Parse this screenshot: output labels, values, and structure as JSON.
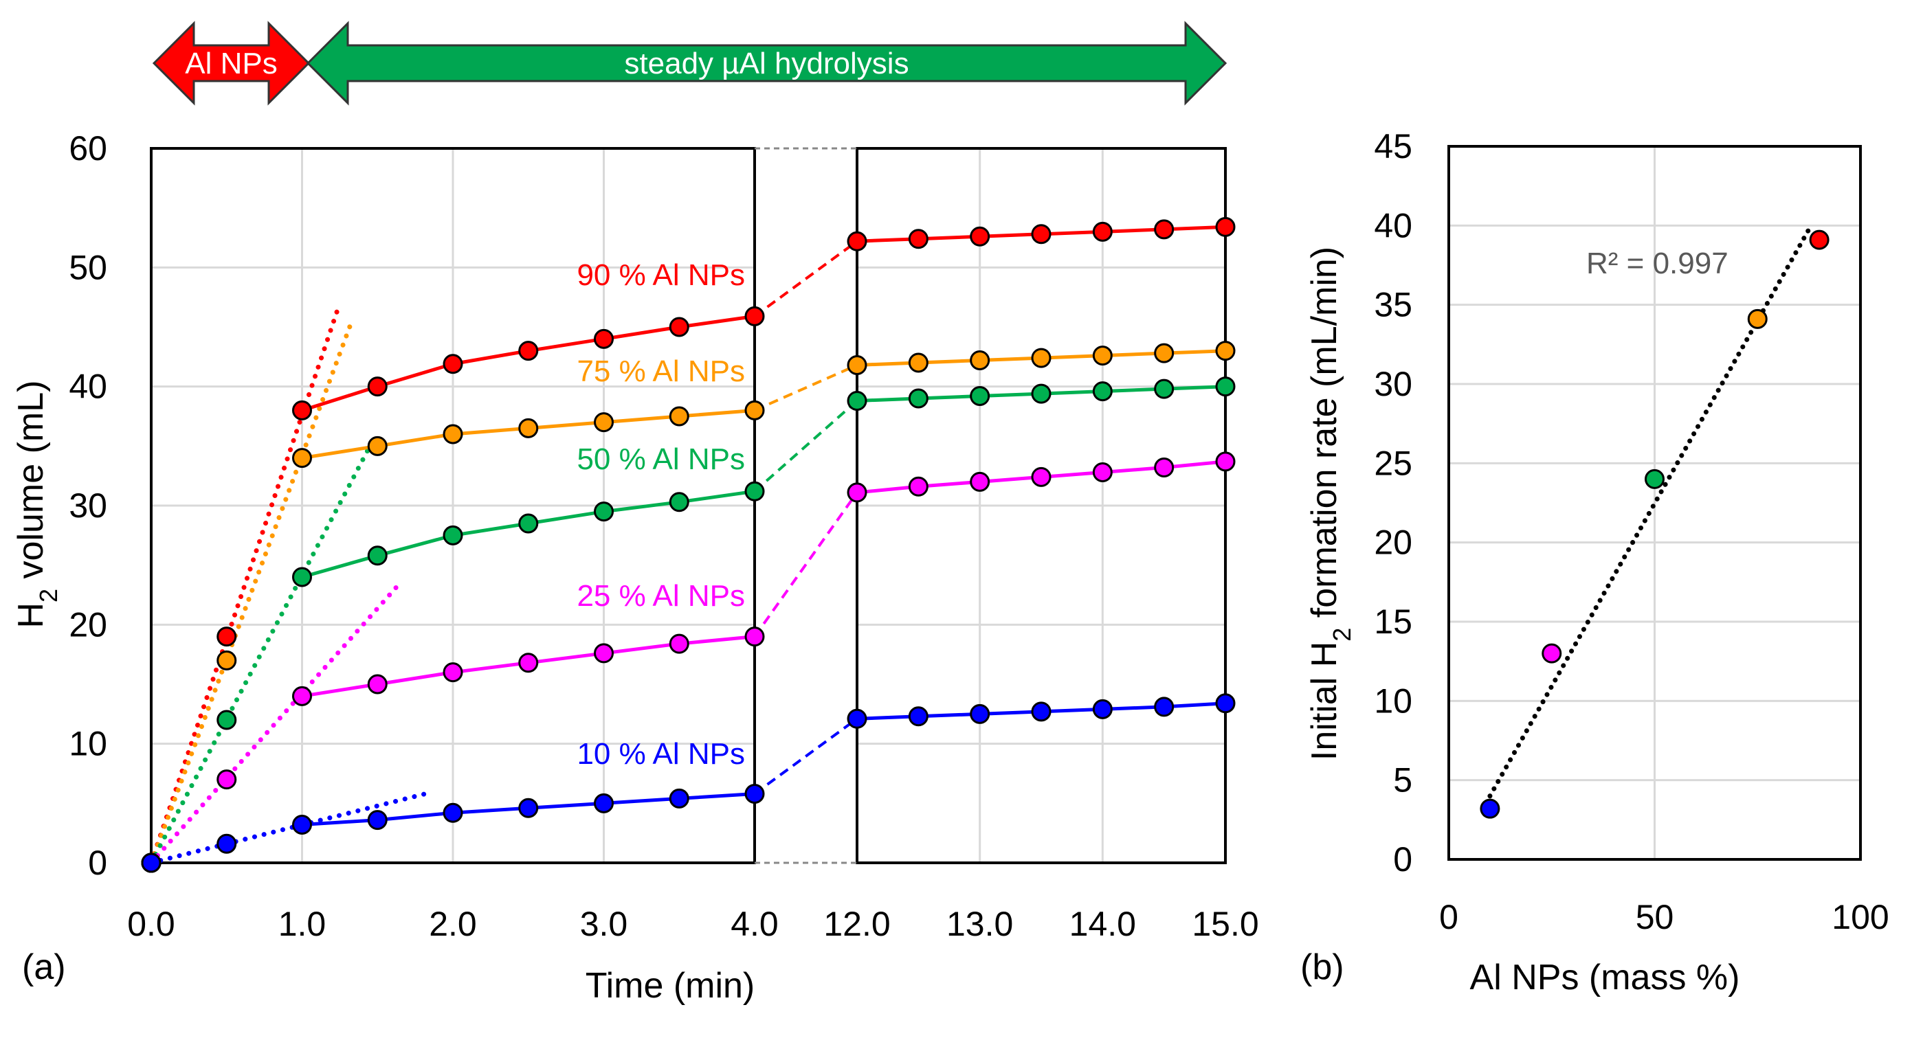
{
  "chart_data": [
    {
      "type": "line",
      "panel": "(a)",
      "xlabel": "Time (min)",
      "ylabel": "H2 volume (mL)",
      "ylabel_main": "H",
      "ylabel_sub": "2",
      "ylabel_rest": " volume (mL)",
      "ylim": [
        0,
        60
      ],
      "yticks": [
        "0",
        "10",
        "20",
        "30",
        "40",
        "50",
        "60"
      ],
      "broken_axis": true,
      "left_segment": {
        "xlim": [
          0,
          4
        ],
        "xticks": [
          "0.0",
          "1.0",
          "2.0",
          "3.0",
          "4.0"
        ]
      },
      "right_segment": {
        "xlim": [
          12,
          15
        ],
        "xticks": [
          "12.0",
          "13.0",
          "14.0",
          "15.0"
        ]
      },
      "phase_arrows": [
        {
          "label": "Al NPs",
          "x_range": [
            0,
            1
          ],
          "color": "#ff0000"
        },
        {
          "label": "steady µAl hydrolysis",
          "x_range": [
            1,
            15
          ],
          "color": "#00a651"
        }
      ],
      "series": [
        {
          "name": "90 % Al NPs",
          "color": "#ff0000",
          "x": [
            0,
            0.5,
            1,
            1.5,
            2,
            2.5,
            3,
            3.5,
            4,
            12,
            12.5,
            13,
            13.5,
            14,
            14.5,
            15
          ],
          "y": [
            0,
            19,
            38,
            40,
            41.9,
            43,
            44,
            45,
            45.9,
            52.2,
            52.4,
            52.6,
            52.8,
            53,
            53.2,
            53.4
          ],
          "initial_slope_line": [
            [
              0,
              0
            ],
            [
              1.25,
              47
            ]
          ]
        },
        {
          "name": "75 % Al NPs",
          "color": "#ff9900",
          "x": [
            0,
            0.5,
            1,
            1.5,
            2,
            2.5,
            3,
            3.5,
            4,
            12,
            12.5,
            13,
            13.5,
            14,
            14.5,
            15
          ],
          "y": [
            0,
            17,
            34,
            35,
            36,
            36.5,
            37,
            37.5,
            38,
            41.8,
            42,
            42.2,
            42.4,
            42.6,
            42.8,
            43
          ],
          "initial_slope_line": [
            [
              0,
              0
            ],
            [
              1.33,
              45.5
            ]
          ]
        },
        {
          "name": "50 % Al NPs",
          "color": "#00b050",
          "x": [
            0,
            0.5,
            1,
            1.5,
            2,
            2.5,
            3,
            3.5,
            4,
            12,
            12.5,
            13,
            13.5,
            14,
            14.5,
            15
          ],
          "y": [
            0,
            12,
            24,
            25.8,
            27.5,
            28.5,
            29.5,
            30.3,
            31.2,
            38.8,
            39,
            39.2,
            39.4,
            39.6,
            39.8,
            40
          ],
          "initial_slope_line": [
            [
              0,
              0
            ],
            [
              1.45,
              35
            ]
          ]
        },
        {
          "name": "25 % Al NPs",
          "color": "#ff00ff",
          "x": [
            0,
            0.5,
            1,
            1.5,
            2,
            2.5,
            3,
            3.5,
            4,
            12,
            12.5,
            13,
            13.5,
            14,
            14.5,
            15
          ],
          "y": [
            0,
            7,
            14,
            15,
            16,
            16.8,
            17.6,
            18.4,
            19,
            31.1,
            31.6,
            32,
            32.4,
            32.8,
            33.2,
            33.7
          ],
          "initial_slope_line": [
            [
              0,
              0
            ],
            [
              1.65,
              23.5
            ]
          ]
        },
        {
          "name": "10 % Al NPs",
          "color": "#0000ff",
          "x": [
            0,
            0.5,
            1,
            1.5,
            2,
            2.5,
            3,
            3.5,
            4,
            12,
            12.5,
            13,
            13.5,
            14,
            14.5,
            15
          ],
          "y": [
            0,
            1.6,
            3.2,
            3.6,
            4.2,
            4.6,
            5,
            5.4,
            5.8,
            12.1,
            12.3,
            12.5,
            12.7,
            12.9,
            13.1,
            13.4
          ],
          "initial_slope_line": [
            [
              0,
              0
            ],
            [
              1.85,
              5.9
            ]
          ]
        }
      ]
    },
    {
      "type": "scatter",
      "panel": "(b)",
      "xlabel": "Al NPs (mass %)",
      "ylabel": "Initial H2 formation rate (mL/min)",
      "ylabel_main": "Initial H",
      "ylabel_sub": "2",
      "ylabel_rest": " formation rate (mL/min)",
      "xlim": [
        0,
        100
      ],
      "ylim": [
        0,
        45
      ],
      "xticks": [
        "0",
        "50",
        "100"
      ],
      "yticks": [
        "0",
        "5",
        "10",
        "15",
        "20",
        "25",
        "30",
        "35",
        "40",
        "45"
      ],
      "points": [
        {
          "x": 10,
          "y": 3.2,
          "color": "#0000ff"
        },
        {
          "x": 25,
          "y": 13,
          "color": "#ff00ff"
        },
        {
          "x": 50,
          "y": 24,
          "color": "#00b050"
        },
        {
          "x": 75,
          "y": 34.1,
          "color": "#ff9900"
        },
        {
          "x": 90,
          "y": 39.1,
          "color": "#ff0000"
        }
      ],
      "trendline": [
        [
          10,
          4
        ],
        [
          88,
          40
        ]
      ],
      "annotation": "R² = 0.997"
    }
  ]
}
